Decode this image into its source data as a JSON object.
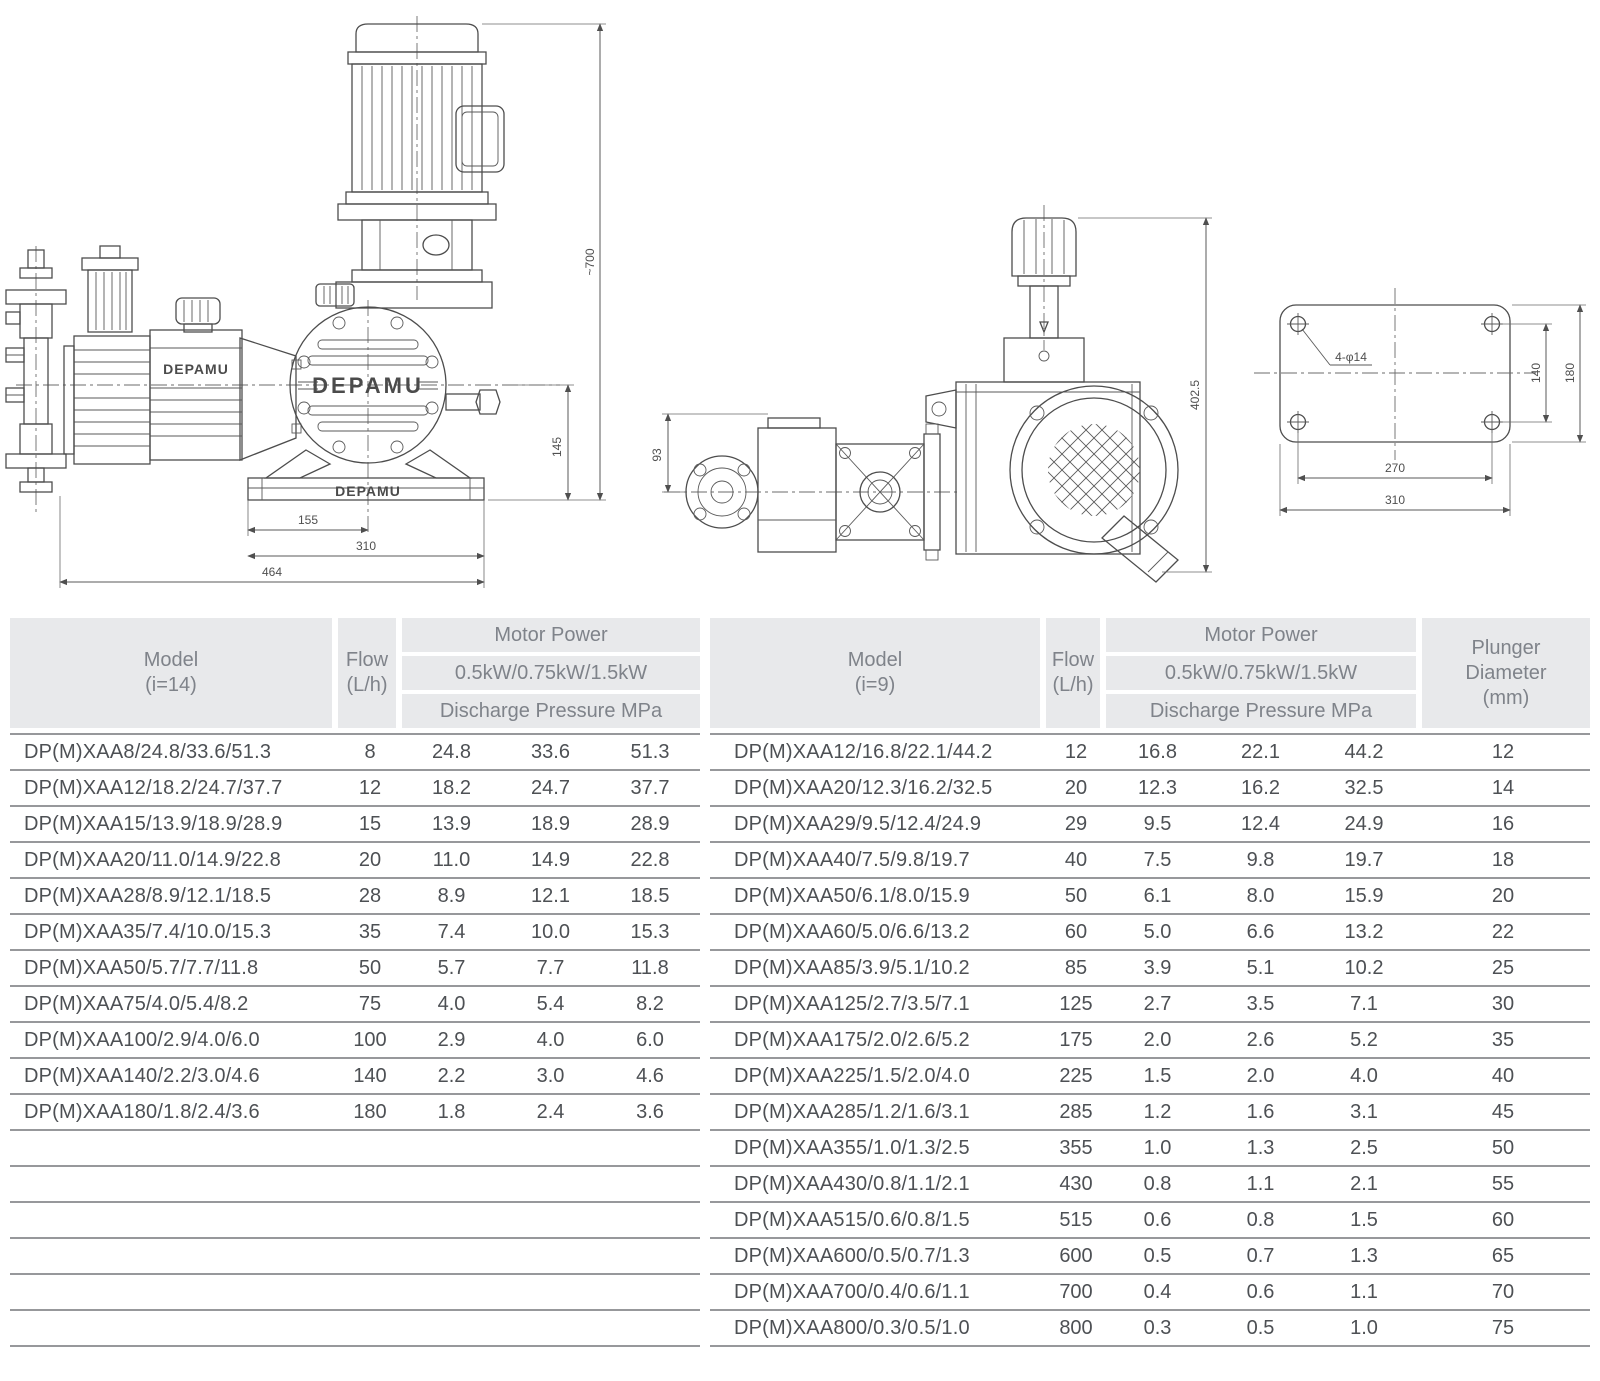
{
  "drawings": {
    "brand": "DEPAMU",
    "front_view": {
      "dim_overall_height": "~700",
      "dim_center_height": "145",
      "dim_base_half": "155",
      "dim_base_width": "310",
      "dim_overall_width": "464"
    },
    "side_view": {
      "dim_overall_height": "402.5",
      "dim_suction_offset": "93"
    },
    "base_plate": {
      "holes_label": "4-φ14",
      "dim_hole_span_v": "140",
      "dim_plate_depth": "180",
      "dim_hole_span_h": "270",
      "dim_plate_width": "310"
    }
  },
  "tables": {
    "left": {
      "header": {
        "model_title": "Model",
        "model_sub": "(i=14)",
        "flow_title": "Flow",
        "flow_sub": "(L/h)",
        "motor_power": "Motor Power",
        "ratings": "0.5kW/0.75kW/1.5kW",
        "discharge": "Discharge Pressure MPa"
      },
      "rows": [
        {
          "model": "DP(M)XAA8/24.8/33.6/51.3",
          "flow": "8",
          "p1": "24.8",
          "p2": "33.6",
          "p3": "51.3"
        },
        {
          "model": "DP(M)XAA12/18.2/24.7/37.7",
          "flow": "12",
          "p1": "18.2",
          "p2": "24.7",
          "p3": "37.7"
        },
        {
          "model": "DP(M)XAA15/13.9/18.9/28.9",
          "flow": "15",
          "p1": "13.9",
          "p2": "18.9",
          "p3": "28.9"
        },
        {
          "model": "DP(M)XAA20/11.0/14.9/22.8",
          "flow": "20",
          "p1": "11.0",
          "p2": "14.9",
          "p3": "22.8"
        },
        {
          "model": "DP(M)XAA28/8.9/12.1/18.5",
          "flow": "28",
          "p1": "8.9",
          "p2": "12.1",
          "p3": "18.5"
        },
        {
          "model": "DP(M)XAA35/7.4/10.0/15.3",
          "flow": "35",
          "p1": "7.4",
          "p2": "10.0",
          "p3": "15.3"
        },
        {
          "model": "DP(M)XAA50/5.7/7.7/11.8",
          "flow": "50",
          "p1": "5.7",
          "p2": "7.7",
          "p3": "11.8"
        },
        {
          "model": "DP(M)XAA75/4.0/5.4/8.2",
          "flow": "75",
          "p1": "4.0",
          "p2": "5.4",
          "p3": "8.2"
        },
        {
          "model": "DP(M)XAA100/2.9/4.0/6.0",
          "flow": "100",
          "p1": "2.9",
          "p2": "4.0",
          "p3": "6.0"
        },
        {
          "model": "DP(M)XAA140/2.2/3.0/4.6",
          "flow": "140",
          "p1": "2.2",
          "p2": "3.0",
          "p3": "4.6"
        },
        {
          "model": "DP(M)XAA180/1.8/2.4/3.6",
          "flow": "180",
          "p1": "1.8",
          "p2": "2.4",
          "p3": "3.6"
        },
        {
          "model": "",
          "flow": "",
          "p1": "",
          "p2": "",
          "p3": ""
        },
        {
          "model": "",
          "flow": "",
          "p1": "",
          "p2": "",
          "p3": ""
        },
        {
          "model": "",
          "flow": "",
          "p1": "",
          "p2": "",
          "p3": ""
        },
        {
          "model": "",
          "flow": "",
          "p1": "",
          "p2": "",
          "p3": ""
        },
        {
          "model": "",
          "flow": "",
          "p1": "",
          "p2": "",
          "p3": ""
        },
        {
          "model": "",
          "flow": "",
          "p1": "",
          "p2": "",
          "p3": ""
        }
      ]
    },
    "right": {
      "header": {
        "model_title": "Model",
        "model_sub": "(i=9)",
        "flow_title": "Flow",
        "flow_sub": "(L/h)",
        "motor_power": "Motor Power",
        "ratings": "0.5kW/0.75kW/1.5kW",
        "discharge": "Discharge Pressure MPa",
        "plunger": "Plunger Diameter",
        "plunger_sub": "(mm)"
      },
      "rows": [
        {
          "model": "DP(M)XAA12/16.8/22.1/44.2",
          "flow": "12",
          "p1": "16.8",
          "p2": "22.1",
          "p3": "44.2",
          "d": "12"
        },
        {
          "model": "DP(M)XAA20/12.3/16.2/32.5",
          "flow": "20",
          "p1": "12.3",
          "p2": "16.2",
          "p3": "32.5",
          "d": "14"
        },
        {
          "model": "DP(M)XAA29/9.5/12.4/24.9",
          "flow": "29",
          "p1": "9.5",
          "p2": "12.4",
          "p3": "24.9",
          "d": "16"
        },
        {
          "model": "DP(M)XAA40/7.5/9.8/19.7",
          "flow": "40",
          "p1": "7.5",
          "p2": "9.8",
          "p3": "19.7",
          "d": "18"
        },
        {
          "model": "DP(M)XAA50/6.1/8.0/15.9",
          "flow": "50",
          "p1": "6.1",
          "p2": "8.0",
          "p3": "15.9",
          "d": "20"
        },
        {
          "model": "DP(M)XAA60/5.0/6.6/13.2",
          "flow": "60",
          "p1": "5.0",
          "p2": "6.6",
          "p3": "13.2",
          "d": "22"
        },
        {
          "model": "DP(M)XAA85/3.9/5.1/10.2",
          "flow": "85",
          "p1": "3.9",
          "p2": "5.1",
          "p3": "10.2",
          "d": "25"
        },
        {
          "model": "DP(M)XAA125/2.7/3.5/7.1",
          "flow": "125",
          "p1": "2.7",
          "p2": "3.5",
          "p3": "7.1",
          "d": "30"
        },
        {
          "model": "DP(M)XAA175/2.0/2.6/5.2",
          "flow": "175",
          "p1": "2.0",
          "p2": "2.6",
          "p3": "5.2",
          "d": "35"
        },
        {
          "model": "DP(M)XAA225/1.5/2.0/4.0",
          "flow": "225",
          "p1": "1.5",
          "p2": "2.0",
          "p3": "4.0",
          "d": "40"
        },
        {
          "model": "DP(M)XAA285/1.2/1.6/3.1",
          "flow": "285",
          "p1": "1.2",
          "p2": "1.6",
          "p3": "3.1",
          "d": "45"
        },
        {
          "model": "DP(M)XAA355/1.0/1.3/2.5",
          "flow": "355",
          "p1": "1.0",
          "p2": "1.3",
          "p3": "2.5",
          "d": "50"
        },
        {
          "model": "DP(M)XAA430/0.8/1.1/2.1",
          "flow": "430",
          "p1": "0.8",
          "p2": "1.1",
          "p3": "2.1",
          "d": "55"
        },
        {
          "model": "DP(M)XAA515/0.6/0.8/1.5",
          "flow": "515",
          "p1": "0.6",
          "p2": "0.8",
          "p3": "1.5",
          "d": "60"
        },
        {
          "model": "DP(M)XAA600/0.5/0.7/1.3",
          "flow": "600",
          "p1": "0.5",
          "p2": "0.7",
          "p3": "1.3",
          "d": "65"
        },
        {
          "model": "DP(M)XAA700/0.4/0.6/1.1",
          "flow": "700",
          "p1": "0.4",
          "p2": "0.6",
          "p3": "1.1",
          "d": "70"
        },
        {
          "model": "DP(M)XAA800/0.3/0.5/1.0",
          "flow": "800",
          "p1": "0.3",
          "p2": "0.5",
          "p3": "1.0",
          "d": "75"
        }
      ]
    }
  }
}
